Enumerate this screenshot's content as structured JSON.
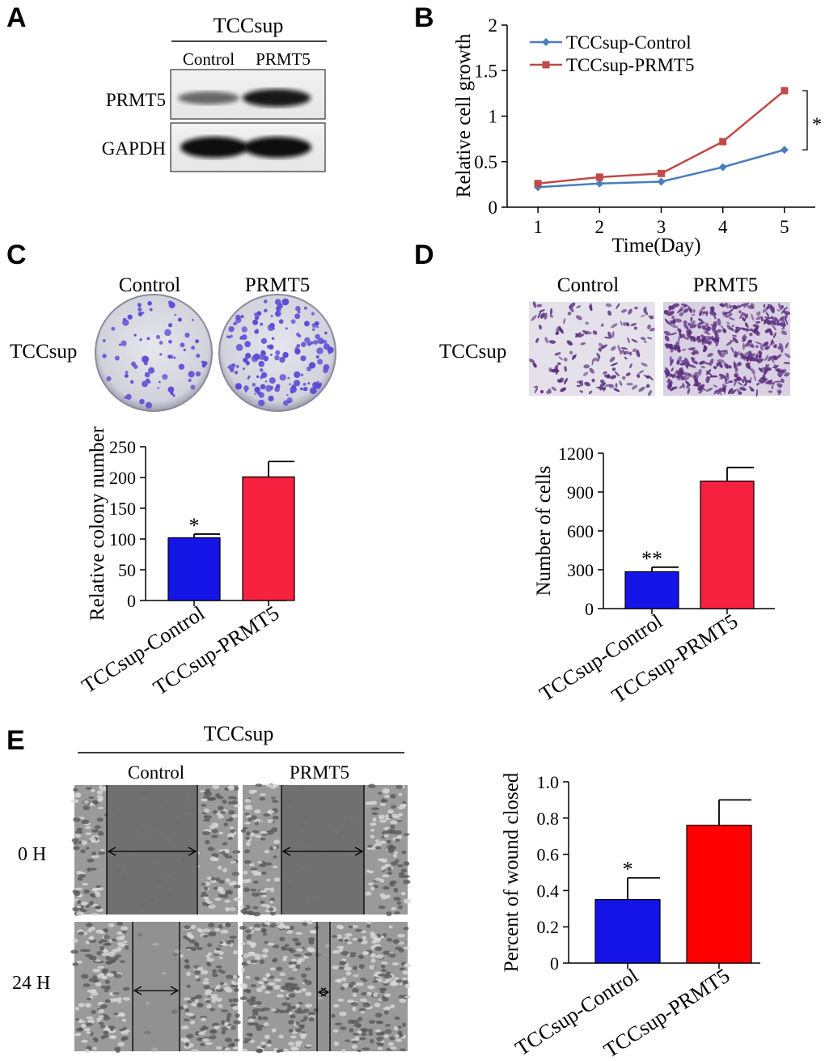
{
  "panels": {
    "A": {
      "letter": "A",
      "cell_line": "TCCsup",
      "lanes": [
        "Control",
        "PRMT5"
      ],
      "rows": [
        "PRMT5",
        "GAPDH"
      ]
    },
    "B": {
      "letter": "B"
    },
    "C": {
      "letter": "C",
      "cell_line": "TCCsup",
      "columns": [
        "Control",
        "PRMT5"
      ]
    },
    "D": {
      "letter": "D",
      "cell_line": "TCCsup",
      "columns": [
        "Control",
        "PRMT5"
      ]
    },
    "E": {
      "letter": "E",
      "cell_line": "TCCsup",
      "columns": [
        "Control",
        "PRMT5"
      ],
      "rows": [
        "0 H",
        "24 H"
      ]
    }
  },
  "colors": {
    "control_line": "#4a7ebb",
    "prmt5_line": "#be4b48",
    "blue_bar": "#1414e6",
    "pink_bar": "#f5213f",
    "red_bar": "#ff0000",
    "colony_dot": "#5a4bd6",
    "cell_stain": "#5a2d7e"
  },
  "chart_data": [
    {
      "id": "B",
      "type": "line",
      "title": "",
      "xlabel": "Time(Day)",
      "ylabel": "Relative cell growth",
      "x": [
        1,
        2,
        3,
        4,
        5
      ],
      "xlim": [
        0.5,
        5.5
      ],
      "ylim": [
        0,
        2
      ],
      "yticks": [
        0,
        0.5,
        1,
        1.5,
        2
      ],
      "ytick_labels": [
        "0",
        "0.5",
        "1",
        "1.5",
        "2"
      ],
      "legend": "top-left",
      "grid": false,
      "series": [
        {
          "name": "TCCsup-Control",
          "values": [
            0.22,
            0.26,
            0.28,
            0.44,
            0.63
          ],
          "marker": "diamond"
        },
        {
          "name": "TCCsup-PRMT5",
          "values": [
            0.26,
            0.33,
            0.37,
            0.72,
            1.28
          ],
          "marker": "square"
        }
      ],
      "annotation": "*"
    },
    {
      "id": "C",
      "type": "bar",
      "title": "",
      "xlabel": "",
      "ylabel": "Relative colony number",
      "categories": [
        "TCCsup-Control",
        "TCCsup-PRMT5"
      ],
      "values": [
        102,
        201
      ],
      "errors": [
        6,
        25
      ],
      "ylim": [
        0,
        250
      ],
      "yticks": [
        0,
        50,
        100,
        150,
        200,
        250
      ],
      "annotations": [
        "*",
        ""
      ]
    },
    {
      "id": "D",
      "type": "bar",
      "title": "",
      "xlabel": "",
      "ylabel": "Number of cells",
      "categories": [
        "TCCsup-Control",
        "TCCsup-PRMT5"
      ],
      "values": [
        285,
        985
      ],
      "errors": [
        35,
        105
      ],
      "ylim": [
        0,
        1200
      ],
      "yticks": [
        0,
        300,
        600,
        900,
        1200
      ],
      "annotations": [
        "**",
        ""
      ]
    },
    {
      "id": "E",
      "type": "bar",
      "title": "",
      "xlabel": "",
      "ylabel": "Percent of wound closed",
      "categories": [
        "TCCsup-Control",
        "TCCsup-PRMT5"
      ],
      "values": [
        0.35,
        0.76
      ],
      "errors": [
        0.12,
        0.14
      ],
      "ylim": [
        0,
        1.0
      ],
      "yticks": [
        0,
        0.2,
        0.4,
        0.6,
        0.8,
        1.0
      ],
      "ytick_labels": [
        "0",
        "0.2",
        "0.4",
        "0.6",
        "0.8",
        "1.0"
      ],
      "annotations": [
        "*",
        ""
      ]
    }
  ]
}
